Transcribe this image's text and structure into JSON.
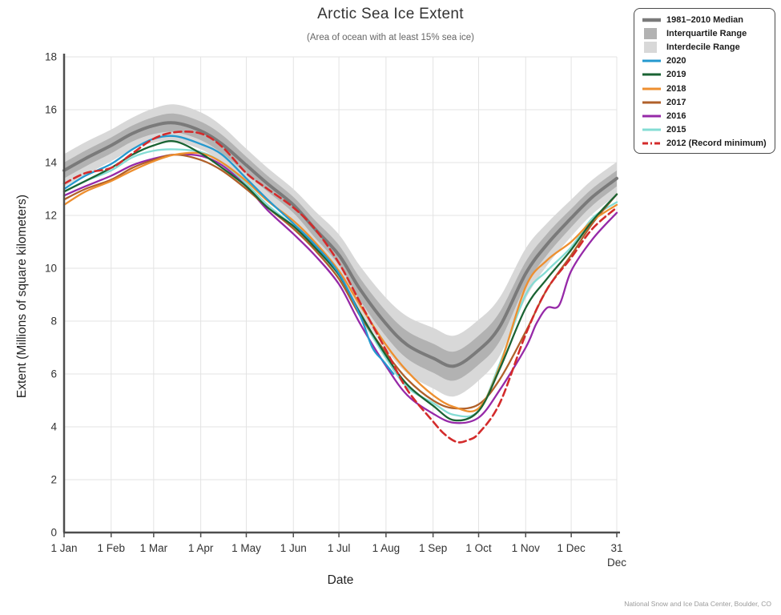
{
  "header": {
    "title": "Arctic Sea Ice Extent",
    "subtitle": "(Area of ocean with at least 15% sea ice)"
  },
  "axes": {
    "x_label": "Date",
    "y_label": "Extent (Millions of square kilometers)"
  },
  "source": "National Snow and Ice Data Center, Boulder, CO",
  "legend": {
    "items": [
      {
        "label": "1981–2010 Median",
        "swatch": "line",
        "color": "#7a7a7a",
        "thick": 4.5
      },
      {
        "label": "Interquartile Range",
        "swatch": "box",
        "color": "#b2b2b2"
      },
      {
        "label": "Interdecile Range",
        "swatch": "box",
        "color": "#d8d8d8"
      },
      {
        "label": "2020",
        "swatch": "line",
        "color": "#2499cf",
        "thick": 3
      },
      {
        "label": "2019",
        "swatch": "line",
        "color": "#1a6333",
        "thick": 3
      },
      {
        "label": "2018",
        "swatch": "line",
        "color": "#ee8f2f",
        "thick": 3
      },
      {
        "label": "2017",
        "swatch": "line",
        "color": "#b0602a",
        "thick": 3
      },
      {
        "label": "2016",
        "swatch": "line",
        "color": "#9629a8",
        "thick": 3
      },
      {
        "label": "2015",
        "swatch": "line",
        "color": "#84dcd4",
        "thick": 3
      },
      {
        "label": "2012 (Record minimum)",
        "swatch": "dashed-line",
        "color": "#d32b2b",
        "thick": 3
      }
    ]
  },
  "chart_data": {
    "type": "line",
    "title": "Arctic Sea Ice Extent",
    "subtitle": "(Area of ocean with at least 15% sea ice)",
    "xlabel": "Date",
    "ylabel": "Extent (Millions of square kilometers)",
    "ylim": [
      0,
      18
    ],
    "xlim_days": [
      1,
      365
    ],
    "grid": true,
    "grid_color": "#e3e3e3",
    "axis_color": "#4d4d4d",
    "legend_position": "top-right",
    "y_ticks": [
      0,
      2,
      4,
      6,
      8,
      10,
      12,
      14,
      16,
      18
    ],
    "x_ticks": [
      {
        "day": 1,
        "label": "1 Jan"
      },
      {
        "day": 32,
        "label": "1 Feb"
      },
      {
        "day": 60,
        "label": "1 Mar"
      },
      {
        "day": 91,
        "label": "1 Apr"
      },
      {
        "day": 121,
        "label": "1 May"
      },
      {
        "day": 152,
        "label": "1 Jun"
      },
      {
        "day": 182,
        "label": "1 Jul"
      },
      {
        "day": 213,
        "label": "1 Aug"
      },
      {
        "day": 244,
        "label": "1 Sep"
      },
      {
        "day": 274,
        "label": "1 Oct"
      },
      {
        "day": 305,
        "label": "1 Nov"
      },
      {
        "day": 335,
        "label": "1 Dec"
      },
      {
        "day": 365,
        "label": "31",
        "label2": "Dec"
      }
    ],
    "bands": {
      "name_median": "1981-2010 Median",
      "name_iqr": "Interquartile Range",
      "name_idr": "Interdecile Range",
      "median_color": "#7a7a7a",
      "iqr_color": "#b2b2b2",
      "idr_color": "#d8d8d8",
      "days": [
        1,
        15,
        32,
        46,
        60,
        74,
        91,
        105,
        121,
        135,
        152,
        166,
        182,
        196,
        213,
        227,
        244,
        258,
        274,
        288,
        305,
        319,
        335,
        349,
        365
      ],
      "median": [
        13.7,
        14.15,
        14.65,
        15.1,
        15.4,
        15.5,
        15.2,
        14.7,
        13.9,
        13.2,
        12.4,
        11.5,
        10.5,
        9.2,
        7.9,
        7.1,
        6.6,
        6.3,
        6.9,
        7.8,
        9.8,
        10.9,
        11.9,
        12.7,
        13.4
      ],
      "iqr_half": [
        0.3,
        0.3,
        0.3,
        0.3,
        0.32,
        0.35,
        0.35,
        0.35,
        0.32,
        0.3,
        0.3,
        0.33,
        0.38,
        0.42,
        0.48,
        0.52,
        0.55,
        0.55,
        0.55,
        0.55,
        0.45,
        0.4,
        0.35,
        0.32,
        0.3
      ],
      "idr_half": [
        0.62,
        0.62,
        0.6,
        0.6,
        0.65,
        0.7,
        0.7,
        0.68,
        0.62,
        0.6,
        0.6,
        0.68,
        0.78,
        0.88,
        0.98,
        1.08,
        1.15,
        1.15,
        1.15,
        1.1,
        0.95,
        0.8,
        0.7,
        0.65,
        0.62
      ]
    },
    "series": [
      {
        "name": "2020",
        "color": "#2499cf",
        "dashed": false,
        "days": [
          1,
          15,
          32,
          46,
          60,
          74,
          91,
          105,
          121,
          135,
          152,
          166,
          182,
          196,
          204,
          211,
          218
        ],
        "values": [
          13.0,
          13.5,
          13.95,
          14.5,
          14.9,
          15.0,
          14.7,
          14.3,
          13.4,
          12.6,
          11.7,
          10.9,
          9.8,
          8.2,
          7.0,
          6.5,
          6.0
        ]
      },
      {
        "name": "2019",
        "color": "#1a6333",
        "dashed": false,
        "days": [
          1,
          15,
          32,
          46,
          60,
          74,
          91,
          105,
          121,
          135,
          152,
          166,
          182,
          196,
          213,
          227,
          244,
          258,
          274,
          288,
          305,
          319,
          335,
          349,
          365
        ],
        "values": [
          12.9,
          13.3,
          13.8,
          14.3,
          14.65,
          14.8,
          14.35,
          13.8,
          13.1,
          12.3,
          11.6,
          10.8,
          9.75,
          8.3,
          6.7,
          5.6,
          4.8,
          4.25,
          4.6,
          6.2,
          8.5,
          9.6,
          10.7,
          11.8,
          12.8
        ]
      },
      {
        "name": "2018",
        "color": "#ee8f2f",
        "dashed": false,
        "days": [
          1,
          15,
          32,
          46,
          60,
          74,
          91,
          105,
          121,
          135,
          152,
          166,
          182,
          196,
          213,
          227,
          244,
          258,
          274,
          288,
          305,
          319,
          335,
          349,
          365
        ],
        "values": [
          12.4,
          12.9,
          13.3,
          13.7,
          14.05,
          14.3,
          14.35,
          14.0,
          13.3,
          12.55,
          11.8,
          11.0,
          9.9,
          8.6,
          7.1,
          6.1,
          5.2,
          4.75,
          4.7,
          6.3,
          9.3,
          10.3,
          11.0,
          11.8,
          12.4
        ]
      },
      {
        "name": "2017",
        "color": "#b0602a",
        "dashed": false,
        "days": [
          1,
          15,
          32,
          46,
          60,
          74,
          91,
          105,
          121,
          135,
          152,
          166,
          182,
          196,
          213,
          227,
          244,
          258,
          274,
          288,
          305,
          319,
          335,
          349,
          365
        ],
        "values": [
          12.6,
          13.0,
          13.35,
          13.8,
          14.1,
          14.3,
          14.1,
          13.7,
          13.0,
          12.3,
          11.5,
          10.7,
          9.6,
          8.2,
          6.8,
          5.8,
          5.0,
          4.7,
          4.85,
          5.8,
          7.6,
          9.2,
          10.5,
          11.7,
          12.8
        ]
      },
      {
        "name": "2016",
        "color": "#9629a8",
        "dashed": false,
        "days": [
          1,
          15,
          32,
          46,
          60,
          74,
          91,
          105,
          121,
          135,
          152,
          166,
          182,
          196,
          213,
          227,
          244,
          258,
          274,
          288,
          305,
          312,
          319,
          327,
          335,
          349,
          365
        ],
        "values": [
          12.75,
          13.1,
          13.5,
          13.9,
          14.15,
          14.3,
          14.25,
          13.9,
          13.1,
          12.2,
          11.3,
          10.5,
          9.4,
          7.9,
          6.3,
          5.2,
          4.5,
          4.15,
          4.35,
          5.4,
          7.0,
          7.9,
          8.5,
          8.6,
          9.9,
          11.1,
          12.1
        ]
      },
      {
        "name": "2015",
        "color": "#84dcd4",
        "dashed": false,
        "days": [
          1,
          15,
          32,
          46,
          60,
          74,
          91,
          105,
          121,
          135,
          152,
          166,
          182,
          196,
          213,
          227,
          244,
          258,
          274,
          288,
          305,
          319,
          335,
          349,
          365
        ],
        "values": [
          12.9,
          13.3,
          13.7,
          14.2,
          14.45,
          14.5,
          14.4,
          14.0,
          13.2,
          12.4,
          11.6,
          10.8,
          9.6,
          8.2,
          6.6,
          5.5,
          4.9,
          4.45,
          4.6,
          6.4,
          9.0,
          9.9,
          10.8,
          11.9,
          12.5
        ]
      },
      {
        "name": "2012 (Record minimum)",
        "color": "#d32b2b",
        "dashed": true,
        "days": [
          1,
          15,
          32,
          46,
          60,
          74,
          91,
          105,
          121,
          135,
          152,
          166,
          182,
          196,
          213,
          227,
          244,
          252,
          260,
          267,
          274,
          288,
          305,
          319,
          335,
          349,
          365
        ],
        "values": [
          13.2,
          13.6,
          13.8,
          14.35,
          14.9,
          15.15,
          15.1,
          14.6,
          13.6,
          13.0,
          12.3,
          11.5,
          10.2,
          8.7,
          6.9,
          5.4,
          4.2,
          3.7,
          3.42,
          3.5,
          3.75,
          4.9,
          7.5,
          9.2,
          10.4,
          11.5,
          12.3
        ]
      }
    ]
  }
}
